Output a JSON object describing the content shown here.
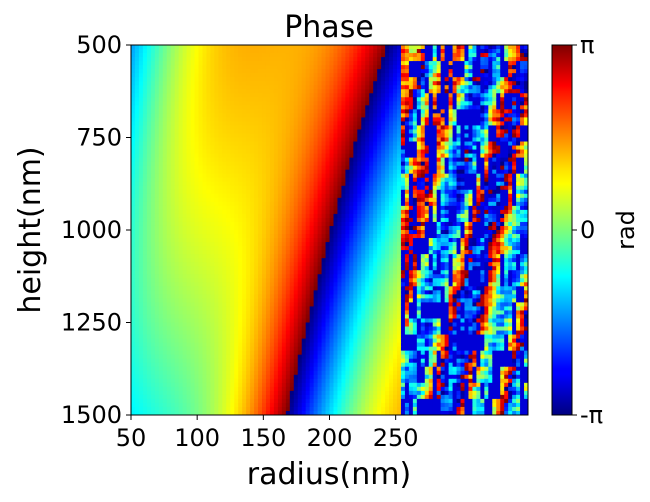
{
  "chart_data": {
    "type": "heatmap",
    "title": "Phase",
    "xlabel": "radius(nm)",
    "ylabel": "height(nm)",
    "xlim": [
      50,
      350
    ],
    "ylim": [
      500,
      1500
    ],
    "y_inverted": true,
    "x_ticks": [
      50,
      100,
      150,
      200,
      250
    ],
    "x_tick_labels": [
      "50",
      "100",
      "150",
      "200",
      "250"
    ],
    "y_ticks": [
      500,
      750,
      1000,
      1250,
      1500
    ],
    "y_tick_labels": [
      "500",
      "750",
      "1000",
      "1250",
      "1500"
    ],
    "colormap": "jet",
    "value_range": [
      -3.14159,
      3.14159
    ],
    "colorbar": {
      "label": "rad",
      "ticks": [
        3.14159,
        0,
        -3.14159
      ],
      "tick_labels": [
        "π",
        "0",
        "-π"
      ]
    },
    "grid": false,
    "legend": "none"
  }
}
